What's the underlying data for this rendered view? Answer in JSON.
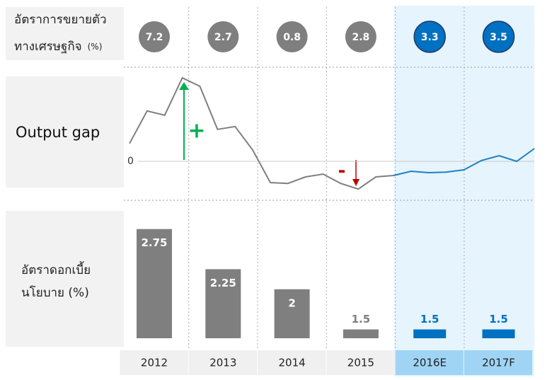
{
  "chart_data": [
    {
      "type": "bubble-row",
      "title_lines": [
        "อัตราการขยายตัว",
        "ทางเศรษฐกิจ"
      ],
      "unit": "(%)",
      "categories": [
        "2012",
        "2013",
        "2014",
        "2015",
        "2016E",
        "2017F"
      ],
      "values": [
        7.2,
        2.7,
        0.8,
        2.8,
        3.3,
        3.5
      ],
      "colors": [
        "#7f7f7f",
        "#7f7f7f",
        "#7f7f7f",
        "#7f7f7f",
        "#0070c0",
        "#0070c0"
      ]
    },
    {
      "type": "line",
      "title": "Output gap",
      "series": [
        {
          "color": "#7f7f7f",
          "values": [
            0.63,
            1.78,
            1.63,
            2.95,
            2.65,
            1.13,
            1.23,
            0.4,
            -0.75,
            -0.78,
            -0.55,
            -0.45,
            -0.78,
            -0.98,
            -0.55,
            -0.5,
            null,
            null,
            null,
            null,
            null,
            null,
            null,
            null
          ]
        },
        {
          "color": "#1f7fc4",
          "values": [
            null,
            null,
            null,
            null,
            null,
            null,
            null,
            null,
            null,
            null,
            null,
            null,
            null,
            null,
            null,
            -0.5,
            -0.35,
            -0.4,
            -0.38,
            -0.3,
            0.03,
            0.2,
            0,
            0.45
          ]
        }
      ],
      "ylim": [
        -1.35,
        3.1
      ],
      "yticks": [
        0
      ],
      "annotations": [
        {
          "text": "+",
          "color": "#00b050"
        },
        {
          "text": "-",
          "color": "#c00000"
        }
      ]
    },
    {
      "type": "bar",
      "title_lines": [
        "อัตราดอกเบี้ย",
        "นโยบาย (%)"
      ],
      "categories": [
        "2012",
        "2013",
        "2014",
        "2015",
        "2016E",
        "2017F"
      ],
      "values": [
        2.75,
        2.25,
        2,
        1.5,
        1.5,
        1.5
      ],
      "colors": [
        "#7f7f7f",
        "#7f7f7f",
        "#7f7f7f",
        "#7f7f7f",
        "#0070c0",
        "#0070c0"
      ],
      "ylim": [
        1.39,
        2.8
      ]
    }
  ]
}
